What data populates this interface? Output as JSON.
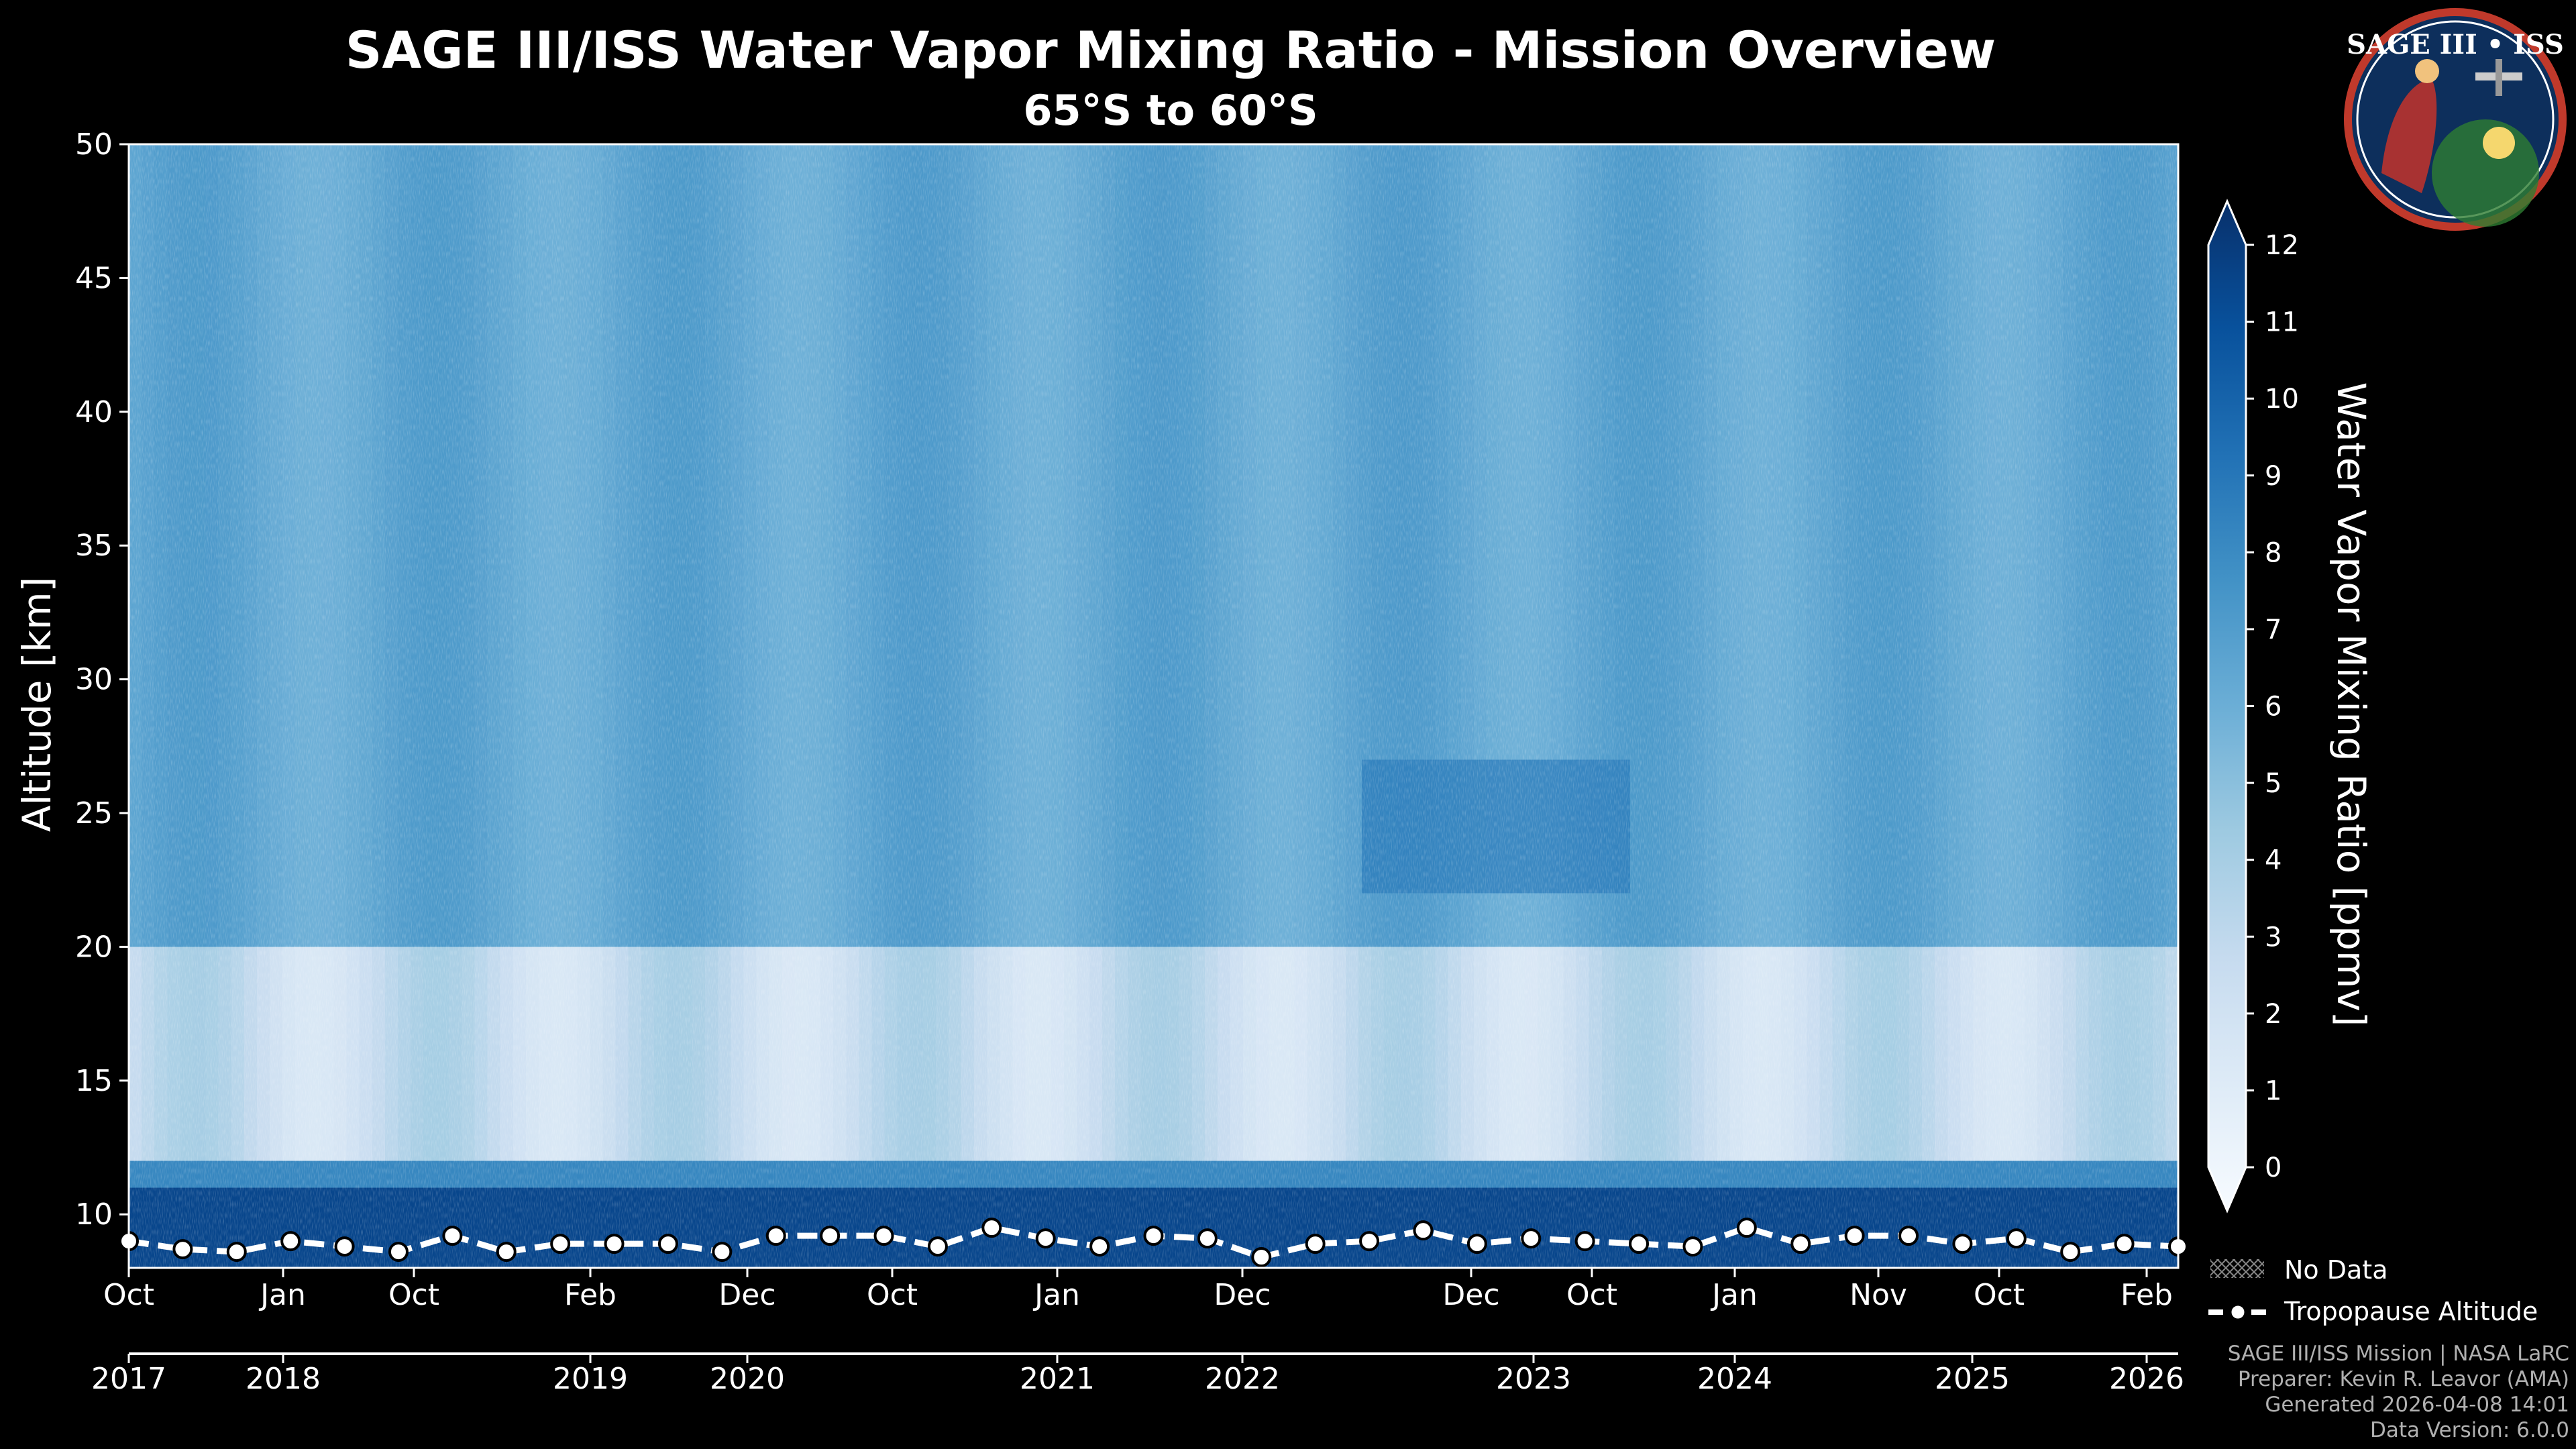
{
  "chart_data": {
    "type": "heatmap",
    "title": "SAGE III/ISS Water Vapor Mixing Ratio - Mission Overview",
    "subtitle": "65°S to 60°S",
    "ylabel": "Altitude [km]",
    "ylim": [
      8,
      50
    ],
    "yticks": [
      10,
      15,
      20,
      25,
      30,
      35,
      40,
      45,
      50
    ],
    "colorbar": {
      "label": "Water Vapor Mixing Ratio [ppmv]",
      "range": [
        0,
        12
      ],
      "ticks": [
        0,
        1,
        2,
        3,
        4,
        5,
        6,
        7,
        8,
        9,
        10,
        11,
        12
      ],
      "colormap": "Blues",
      "colors": [
        "#f7fbff",
        "#deebf7",
        "#c6dbef",
        "#9ecae1",
        "#6baed6",
        "#4292c6",
        "#2171b5",
        "#08519c",
        "#08306b"
      ]
    },
    "x_month_ticks": [
      "Oct",
      "Jan",
      "Oct",
      "Feb",
      "Dec",
      "Oct",
      "Jan",
      "Dec",
      "Dec",
      "Oct",
      "Jan",
      "Nov",
      "Oct",
      "Feb"
    ],
    "x_year_ticks": [
      "2017",
      "2018",
      "2019",
      "2020",
      "2021",
      "2022",
      "2023",
      "2024",
      "2025",
      "2026"
    ],
    "profile_features": [
      {
        "altitude_km": "8-11",
        "description": "dark blue tropospheric layer",
        "value_ppmv": 11
      },
      {
        "altitude_km": "12-20",
        "description": "light blue dry lower stratosphere",
        "value_ppmv": 3
      },
      {
        "altitude_km": "20-50",
        "description": "medium blue upper stratosphere",
        "value_ppmv": 6.5
      },
      {
        "altitude_km": "22-27",
        "description": "enhanced region Dec 2022 - Oct 2023",
        "value_ppmv": 8.5
      }
    ],
    "tropopause": {
      "label": "Tropopause Altitude",
      "altitudes_km": [
        9.0,
        8.7,
        8.6,
        9.0,
        8.8,
        8.6,
        9.2,
        8.6,
        8.9,
        8.9,
        8.9,
        8.6,
        9.2,
        9.2,
        9.2,
        8.8,
        9.5,
        9.1,
        8.8,
        9.2,
        9.1,
        8.4,
        8.9,
        9.0,
        9.4,
        8.9,
        9.1,
        9.0,
        8.9,
        8.8,
        9.5,
        8.9,
        9.2,
        9.2,
        8.9,
        9.1,
        8.6,
        8.9,
        8.8
      ]
    },
    "legend": [
      {
        "label": "No Data",
        "symbol": "cross-hatch"
      },
      {
        "label": "Tropopause Altitude",
        "symbol": "dashed-line-with-dots"
      }
    ],
    "logo_text": "SAGE III • ISS"
  },
  "footer": {
    "line1": "SAGE III/ISS Mission | NASA LaRC",
    "line2": "Preparer: Kevin R. Leavor (AMA)",
    "line3": "Generated 2026-04-08 14:01",
    "line4": "Data Version: 6.0.0"
  }
}
